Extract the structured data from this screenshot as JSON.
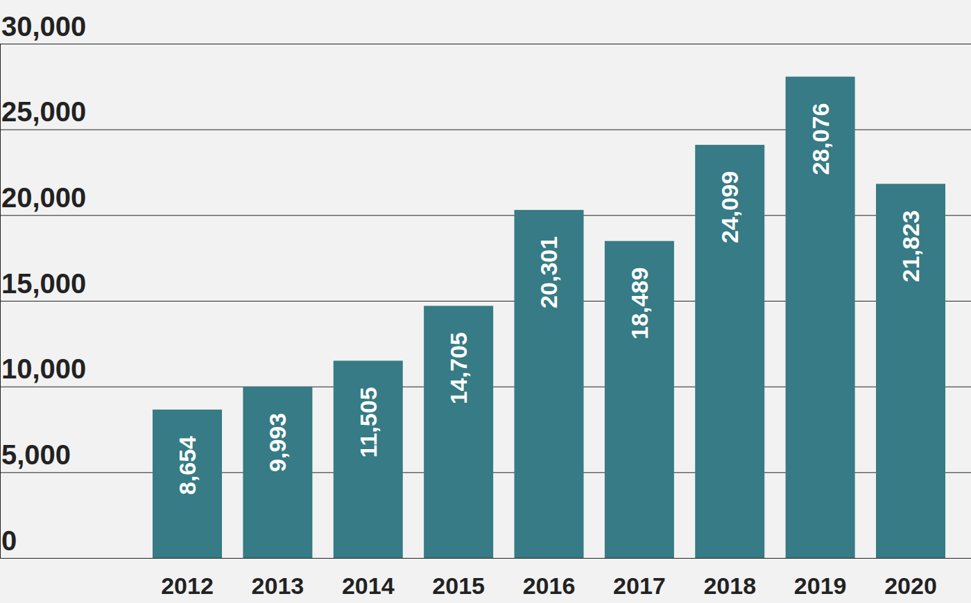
{
  "chart_data": {
    "type": "bar",
    "categories": [
      "2012",
      "2013",
      "2014",
      "2015",
      "2016",
      "2017",
      "2018",
      "2019",
      "2020"
    ],
    "values": [
      8654,
      9993,
      11505,
      14705,
      20301,
      18489,
      24099,
      28076,
      21823
    ],
    "value_labels": [
      "8,654",
      "9,993",
      "11,505",
      "14,705",
      "20,301",
      "18,489",
      "24,099",
      "28,076",
      "21,823"
    ],
    "color": "#367b85",
    "ylim": [
      0,
      30000
    ],
    "yticks": [
      0,
      {
        "value": 5000,
        "label": "5,000"
      },
      {
        "value": 10000,
        "label": "10,000"
      },
      {
        "value": 15000,
        "label": "15,000"
      },
      {
        "value": 20000,
        "label": "20,000"
      },
      {
        "value": 25000,
        "label": "25,000"
      },
      {
        "value": 30000,
        "label": "30,000"
      }
    ],
    "grid": true,
    "data_labels": true
  }
}
